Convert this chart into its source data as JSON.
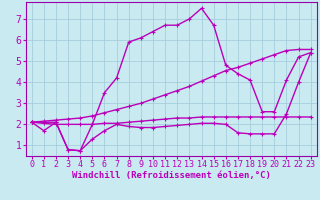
{
  "xlabel": "Windchill (Refroidissement éolien,°C)",
  "bg_color": "#c8eaf0",
  "grid_color": "#a0c8d8",
  "line_color": "#bb00bb",
  "spine_color": "#9900aa",
  "xlim": [
    -0.5,
    23.5
  ],
  "ylim": [
    0.5,
    7.8
  ],
  "line1_x": [
    0,
    1,
    2,
    3,
    4,
    5,
    6,
    7,
    8,
    9,
    10,
    11,
    12,
    13,
    14,
    15,
    16,
    17,
    18,
    19,
    20,
    21,
    22,
    23
  ],
  "line1_y": [
    2.1,
    1.7,
    2.1,
    0.8,
    0.75,
    2.0,
    3.5,
    4.2,
    5.9,
    6.1,
    6.4,
    6.7,
    6.7,
    7.0,
    7.5,
    6.7,
    4.8,
    4.4,
    4.1,
    2.6,
    2.6,
    4.1,
    5.2,
    5.4
  ],
  "line2_x": [
    0,
    1,
    2,
    3,
    4,
    5,
    6,
    7,
    8,
    9,
    10,
    11,
    12,
    13,
    14,
    15,
    16,
    17,
    18,
    19,
    20,
    21,
    22,
    23
  ],
  "line2_y": [
    2.1,
    2.05,
    2.0,
    2.0,
    2.0,
    2.0,
    2.05,
    2.05,
    2.1,
    2.15,
    2.2,
    2.25,
    2.3,
    2.3,
    2.35,
    2.35,
    2.35,
    2.35,
    2.35,
    2.35,
    2.35,
    2.35,
    2.35,
    2.35
  ],
  "line3_x": [
    0,
    1,
    2,
    3,
    4,
    5,
    6,
    7,
    8,
    9,
    10,
    11,
    12,
    13,
    14,
    15,
    16,
    17,
    18,
    19,
    20,
    21,
    22,
    23
  ],
  "line3_y": [
    2.1,
    2.1,
    2.1,
    0.8,
    0.75,
    1.3,
    1.7,
    2.0,
    1.9,
    1.85,
    1.85,
    1.9,
    1.95,
    2.0,
    2.05,
    2.05,
    2.0,
    1.6,
    1.55,
    1.55,
    1.55,
    2.5,
    4.0,
    5.4
  ],
  "line4_x": [
    0,
    1,
    2,
    3,
    4,
    5,
    6,
    7,
    8,
    9,
    10,
    11,
    12,
    13,
    14,
    15,
    16,
    17,
    18,
    19,
    20,
    21,
    22,
    23
  ],
  "line4_y": [
    2.1,
    2.15,
    2.2,
    2.25,
    2.3,
    2.4,
    2.55,
    2.7,
    2.85,
    3.0,
    3.2,
    3.4,
    3.6,
    3.8,
    4.05,
    4.3,
    4.55,
    4.7,
    4.9,
    5.1,
    5.3,
    5.5,
    5.55,
    5.55
  ],
  "xticks": [
    0,
    1,
    2,
    3,
    4,
    5,
    6,
    7,
    8,
    9,
    10,
    11,
    12,
    13,
    14,
    15,
    16,
    17,
    18,
    19,
    20,
    21,
    22,
    23
  ],
  "yticks": [
    1,
    2,
    3,
    4,
    5,
    6,
    7
  ],
  "xlabel_fontsize": 6.5,
  "tick_fontsize": 6
}
